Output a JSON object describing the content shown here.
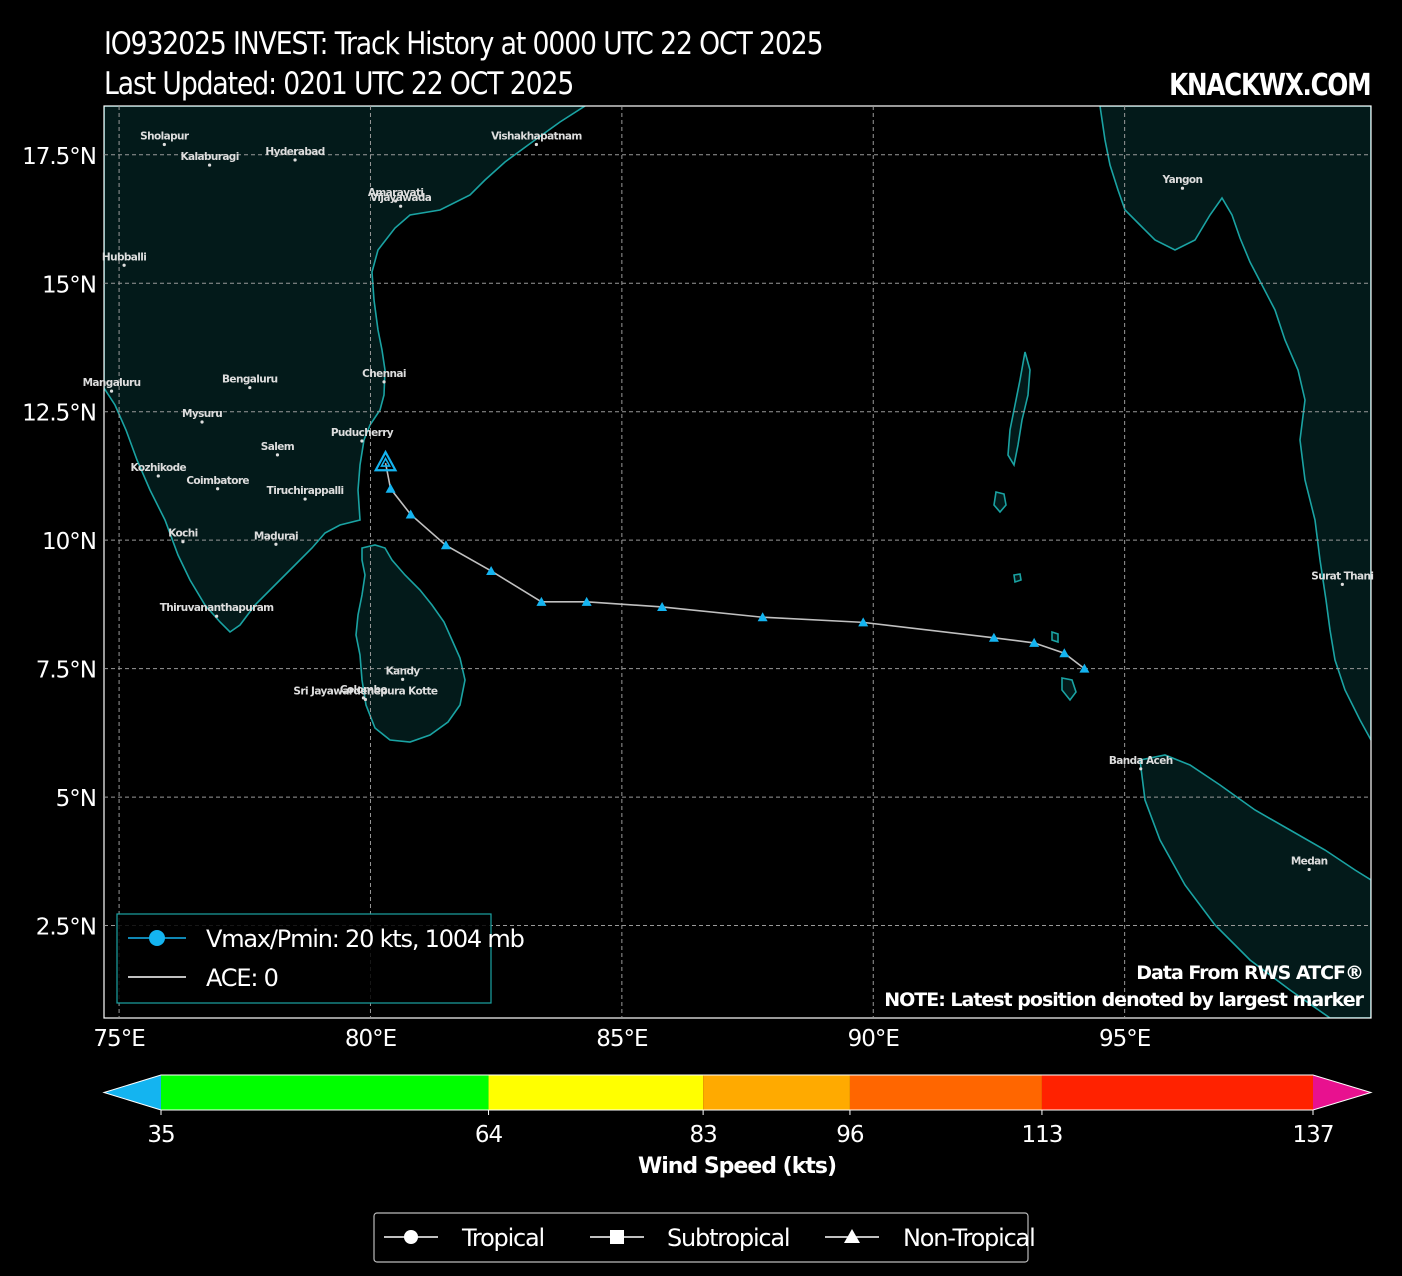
{
  "title_line1": "IO932025 INVEST: Track History at 0000 UTC 22 OCT 2025",
  "title_line2": "Last Updated: 0201 UTC 22 OCT 2025",
  "brand": "KNACKWX.COM",
  "map": {
    "lon_ticks": [
      "75°E",
      "80°E",
      "85°E",
      "90°E",
      "95°E"
    ],
    "lat_ticks": [
      "17.5°N",
      "15°N",
      "12.5°N",
      "10°N",
      "7.5°N",
      "5°N",
      "2.5°N"
    ],
    "colors": {
      "ocean": "#000000",
      "land": "#031a1a",
      "coast": "#1aa3a3",
      "track": "#c0c0c0",
      "marker": "#14b4f0"
    },
    "cities": [
      {
        "name": "Sholapur",
        "lon": 75.9,
        "lat": 17.7
      },
      {
        "name": "Kalaburagi",
        "lon": 76.8,
        "lat": 17.3
      },
      {
        "name": "Hyderabad",
        "lon": 78.5,
        "lat": 17.4
      },
      {
        "name": "Vishakhapatnam",
        "lon": 83.3,
        "lat": 17.7
      },
      {
        "name": "Amaravati",
        "lon": 80.5,
        "lat": 16.6
      },
      {
        "name": "Vijayawada",
        "lon": 80.6,
        "lat": 16.5
      },
      {
        "name": "Hubballi",
        "lon": 75.1,
        "lat": 15.35
      },
      {
        "name": "Mangaluru",
        "lon": 74.85,
        "lat": 12.9
      },
      {
        "name": "Bengaluru",
        "lon": 77.6,
        "lat": 12.97
      },
      {
        "name": "Chennai",
        "lon": 80.27,
        "lat": 13.08
      },
      {
        "name": "Mysuru",
        "lon": 76.65,
        "lat": 12.3
      },
      {
        "name": "Puducherry",
        "lon": 79.83,
        "lat": 11.93
      },
      {
        "name": "Salem",
        "lon": 78.15,
        "lat": 11.66
      },
      {
        "name": "Kozhikode",
        "lon": 75.78,
        "lat": 11.25
      },
      {
        "name": "Coimbatore",
        "lon": 76.96,
        "lat": 11.0
      },
      {
        "name": "Tiruchirappalli",
        "lon": 78.7,
        "lat": 10.8
      },
      {
        "name": "Kochi",
        "lon": 76.27,
        "lat": 9.97
      },
      {
        "name": "Madurai",
        "lon": 78.12,
        "lat": 9.92
      },
      {
        "name": "Thiruvananthapuram",
        "lon": 76.94,
        "lat": 8.52
      },
      {
        "name": "Colombo",
        "lon": 79.86,
        "lat": 6.93
      },
      {
        "name": "Kandy",
        "lon": 80.64,
        "lat": 7.29
      },
      {
        "name": "Sri Jayawardenepura Kotte",
        "lon": 79.9,
        "lat": 6.9
      },
      {
        "name": "Yangon",
        "lon": 96.15,
        "lat": 16.85
      },
      {
        "name": "Surat Thani",
        "lon": 99.33,
        "lat": 9.14
      },
      {
        "name": "Banda Aceh",
        "lon": 95.32,
        "lat": 5.55
      },
      {
        "name": "Medan",
        "lon": 98.67,
        "lat": 3.59
      }
    ],
    "track": [
      {
        "lon": 94.2,
        "lat": 7.5
      },
      {
        "lon": 93.8,
        "lat": 7.8
      },
      {
        "lon": 93.2,
        "lat": 8.0
      },
      {
        "lon": 92.4,
        "lat": 8.1
      },
      {
        "lon": 89.8,
        "lat": 8.4
      },
      {
        "lon": 87.8,
        "lat": 8.5
      },
      {
        "lon": 85.8,
        "lat": 8.7
      },
      {
        "lon": 84.3,
        "lat": 8.8
      },
      {
        "lon": 83.4,
        "lat": 8.8
      },
      {
        "lon": 82.4,
        "lat": 9.4
      },
      {
        "lon": 81.5,
        "lat": 9.9
      },
      {
        "lon": 80.8,
        "lat": 10.5
      },
      {
        "lon": 80.4,
        "lat": 11.0
      },
      {
        "lon": 80.3,
        "lat": 11.5
      }
    ],
    "legend": {
      "line1": "Vmax/Pmin: 20 kts, 1004 mb",
      "line2": "ACE: 0"
    },
    "note1": "Data From RWS ATCF®",
    "note2": "NOTE: Latest position denoted by largest marker"
  },
  "colorbar": {
    "label": "Wind Speed (kts)",
    "ticks": [
      35,
      64,
      83,
      96,
      113,
      137
    ],
    "colors": [
      "#00ff00",
      "#ffff00",
      "#ffaa00",
      "#ff6600",
      "#ff2200"
    ],
    "under_color": "#14b4f0",
    "over_color": "#e8118f"
  },
  "type_legend": {
    "tropical": "Tropical",
    "subtropical": "Subtropical",
    "nontropical": "Non-Tropical"
  }
}
